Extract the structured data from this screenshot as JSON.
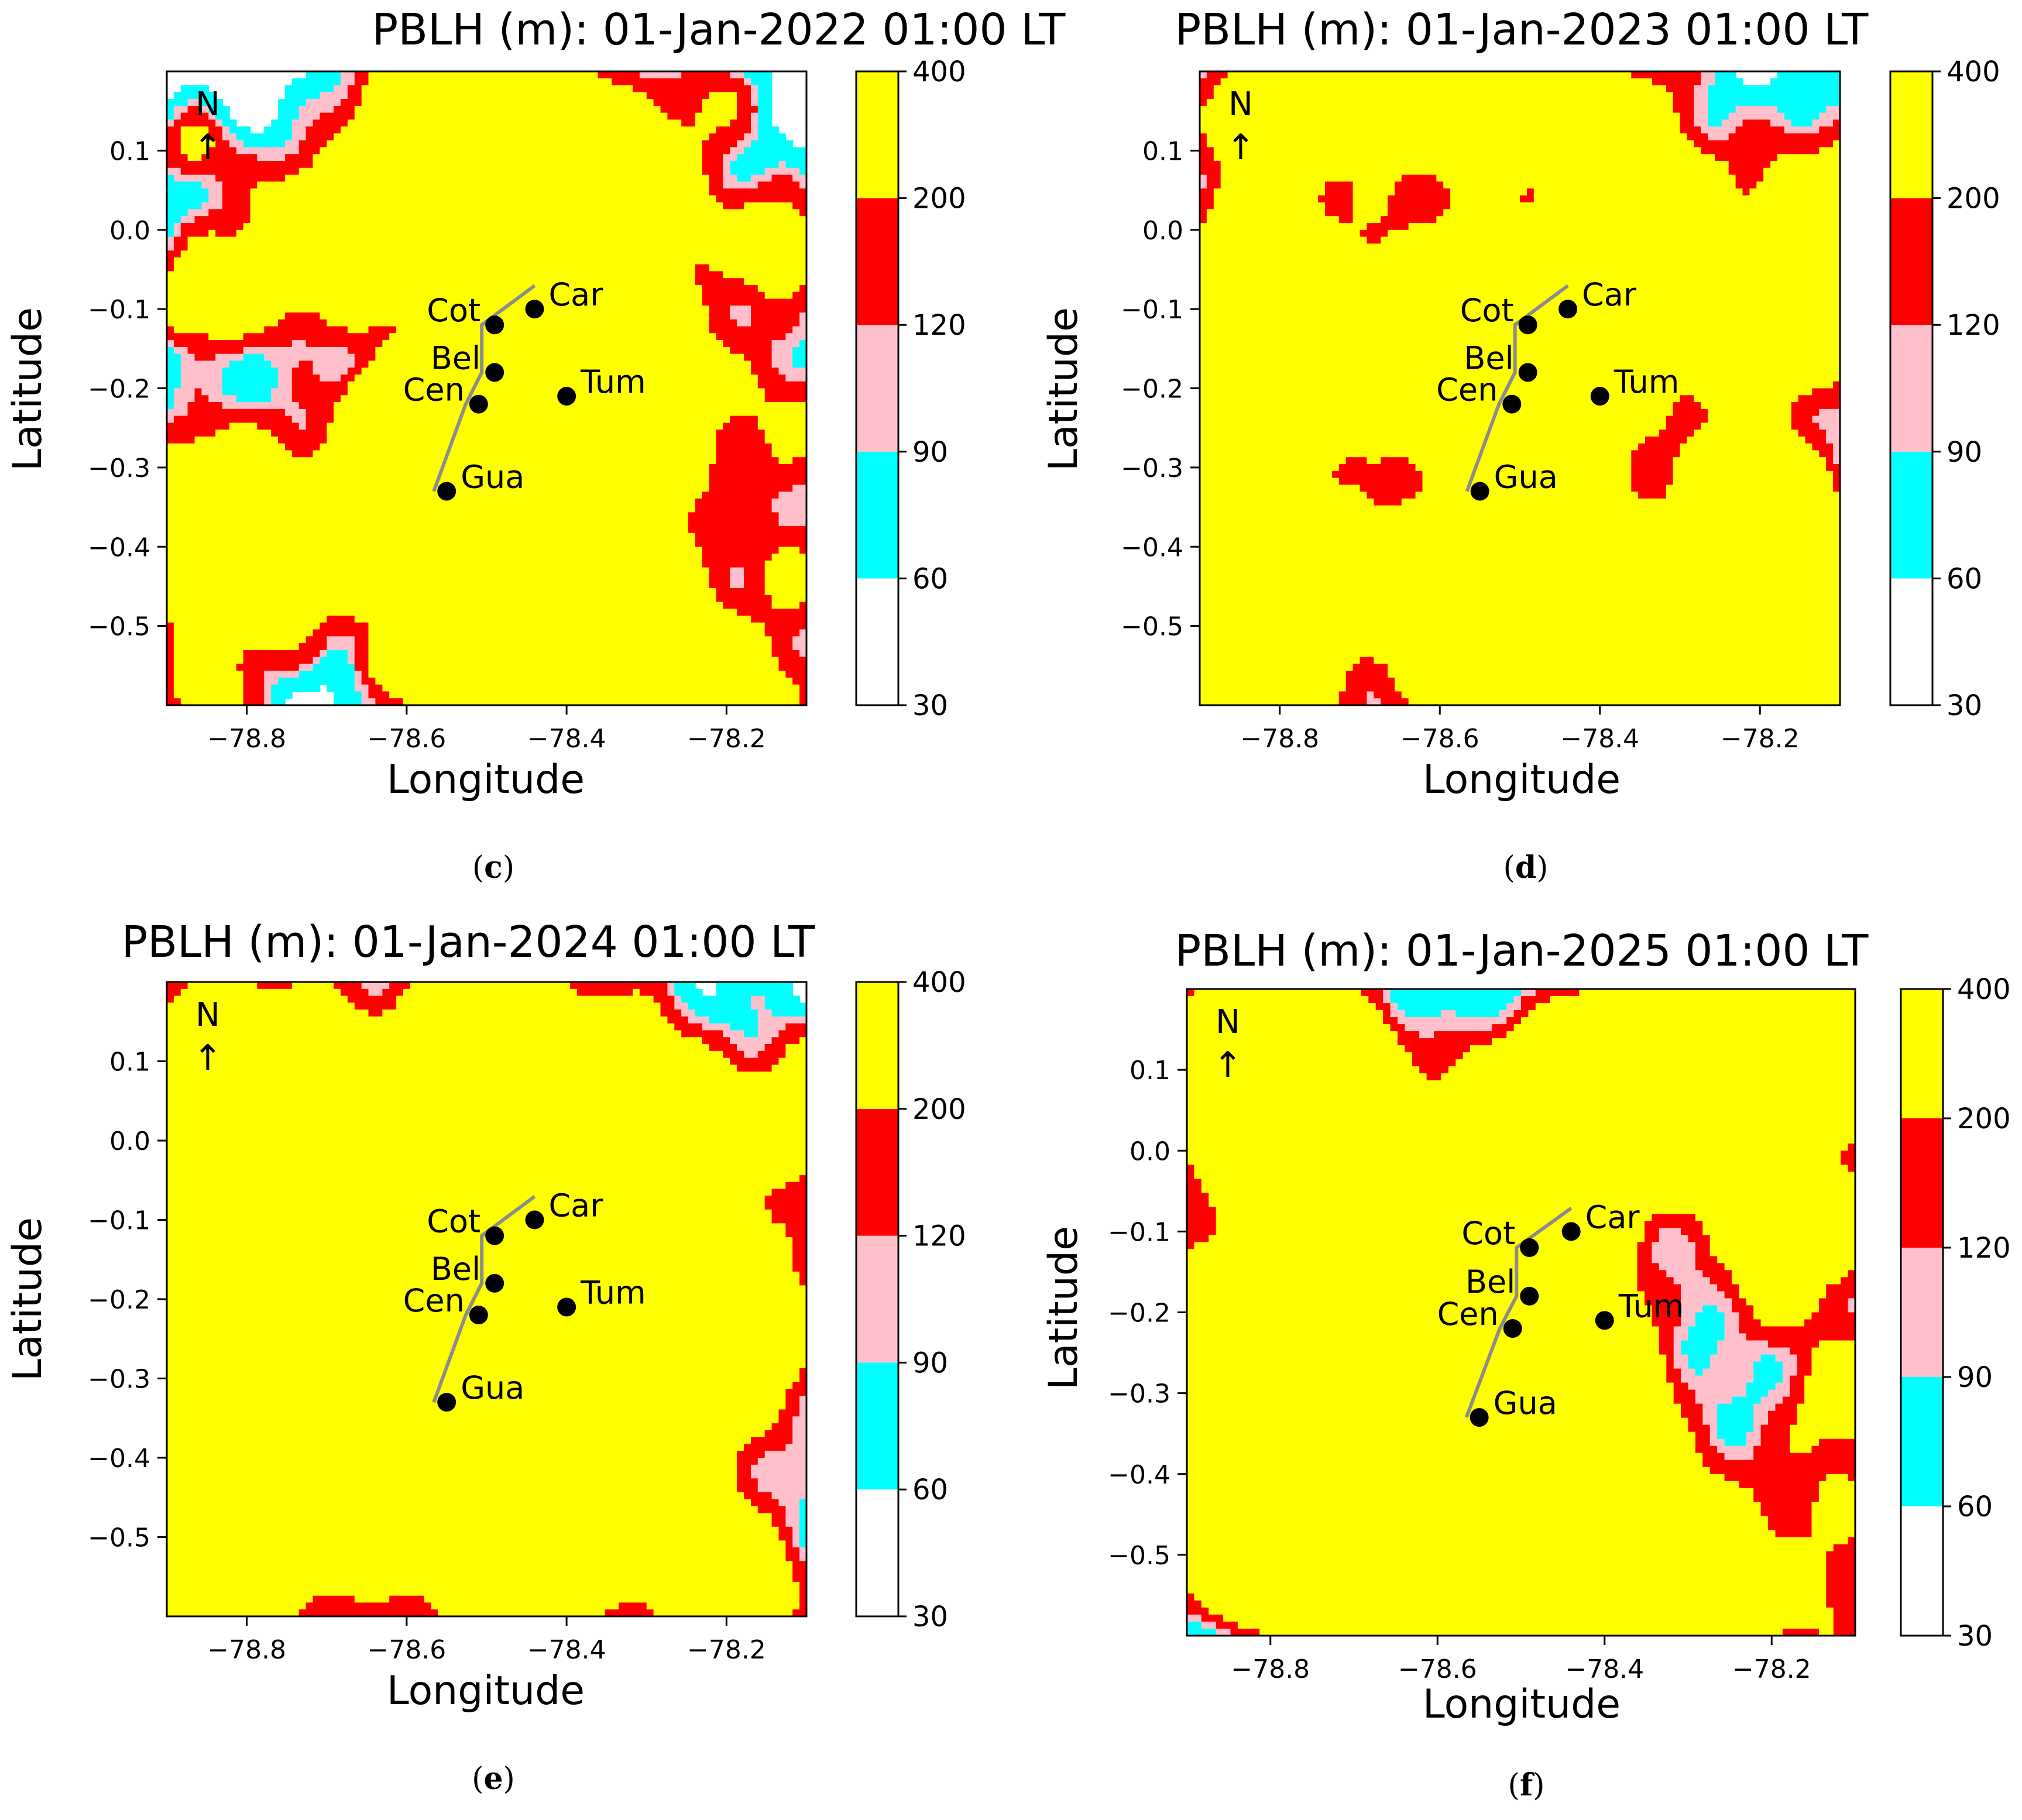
{
  "colors": {
    "white": "#ffffff",
    "cyan": "#00ffff",
    "pink": "#ffc0cb",
    "red": "#ff0000",
    "yellow": "#ffff00",
    "contour_line": "#8c8c8c"
  },
  "chart_data": [
    {
      "type": "contour-map",
      "panel_label": "c",
      "title": "PBLH (m): 01-Jan-2022 01:00 LT",
      "xlabel": "Longitude",
      "ylabel": "Latitude",
      "xlim": [
        -78.9,
        -78.1
      ],
      "ylim": [
        -0.6,
        0.2
      ],
      "xticks": [
        -78.8,
        -78.6,
        -78.4,
        -78.2
      ],
      "xtick_labels": [
        "−78.8",
        "−78.6",
        "−78.4",
        "−78.2"
      ],
      "yticks": [
        0.1,
        0.0,
        -0.1,
        -0.2,
        -0.3,
        -0.4,
        -0.5
      ],
      "ytick_labels": [
        "0.1",
        "0.0",
        "−0.1",
        "−0.2",
        "−0.3",
        "−0.4",
        "−0.5"
      ],
      "north_label": "N",
      "north_arrow": "↑",
      "colorbar_levels": [
        30,
        60,
        90,
        120,
        200,
        400
      ],
      "colorbar_labels": [
        "30",
        "60",
        "90",
        "120",
        "200",
        "400"
      ],
      "stations": [
        {
          "name": "Cot",
          "lon": -78.49,
          "lat": -0.12,
          "label_side": "left"
        },
        {
          "name": "Car",
          "lon": -78.44,
          "lat": -0.1,
          "label_side": "right"
        },
        {
          "name": "Bel",
          "lon": -78.49,
          "lat": -0.18,
          "label_side": "left"
        },
        {
          "name": "Cen",
          "lon": -78.51,
          "lat": -0.22,
          "label_side": "left"
        },
        {
          "name": "Tum",
          "lon": -78.4,
          "lat": -0.21,
          "label_side": "right"
        },
        {
          "name": "Gua",
          "lon": -78.55,
          "lat": -0.33,
          "label_side": "right"
        }
      ]
    },
    {
      "type": "contour-map",
      "panel_label": "d",
      "title": "PBLH (m): 01-Jan-2023 01:00 LT",
      "xlabel": "Longitude",
      "ylabel": "Latitude",
      "xlim": [
        -78.9,
        -78.1
      ],
      "ylim": [
        -0.6,
        0.2
      ],
      "xticks": [
        -78.8,
        -78.6,
        -78.4,
        -78.2
      ],
      "xtick_labels": [
        "−78.8",
        "−78.6",
        "−78.4",
        "−78.2"
      ],
      "yticks": [
        0.1,
        0.0,
        -0.1,
        -0.2,
        -0.3,
        -0.4,
        -0.5
      ],
      "ytick_labels": [
        "0.1",
        "0.0",
        "−0.1",
        "−0.2",
        "−0.3",
        "−0.4",
        "−0.5"
      ],
      "north_label": "N",
      "north_arrow": "↑",
      "colorbar_levels": [
        30,
        60,
        90,
        120,
        200,
        400
      ],
      "colorbar_labels": [
        "30",
        "60",
        "90",
        "120",
        "200",
        "400"
      ],
      "stations": [
        {
          "name": "Cot",
          "lon": -78.49,
          "lat": -0.12,
          "label_side": "left"
        },
        {
          "name": "Car",
          "lon": -78.44,
          "lat": -0.1,
          "label_side": "right"
        },
        {
          "name": "Bel",
          "lon": -78.49,
          "lat": -0.18,
          "label_side": "left"
        },
        {
          "name": "Cen",
          "lon": -78.51,
          "lat": -0.22,
          "label_side": "left"
        },
        {
          "name": "Tum",
          "lon": -78.4,
          "lat": -0.21,
          "label_side": "right"
        },
        {
          "name": "Gua",
          "lon": -78.55,
          "lat": -0.33,
          "label_side": "right"
        }
      ]
    },
    {
      "type": "contour-map",
      "panel_label": "e",
      "title": "PBLH (m): 01-Jan-2024 01:00 LT",
      "xlabel": "Longitude",
      "ylabel": "Latitude",
      "xlim": [
        -78.9,
        -78.1
      ],
      "ylim": [
        -0.6,
        0.2
      ],
      "xticks": [
        -78.8,
        -78.6,
        -78.4,
        -78.2
      ],
      "xtick_labels": [
        "−78.8",
        "−78.6",
        "−78.4",
        "−78.2"
      ],
      "yticks": [
        0.1,
        0.0,
        -0.1,
        -0.2,
        -0.3,
        -0.4,
        -0.5
      ],
      "ytick_labels": [
        "0.1",
        "0.0",
        "−0.1",
        "−0.2",
        "−0.3",
        "−0.4",
        "−0.5"
      ],
      "north_label": "N",
      "north_arrow": "↑",
      "colorbar_levels": [
        30,
        60,
        90,
        120,
        200,
        400
      ],
      "colorbar_labels": [
        "30",
        "60",
        "90",
        "120",
        "200",
        "400"
      ],
      "stations": [
        {
          "name": "Cot",
          "lon": -78.49,
          "lat": -0.12,
          "label_side": "left"
        },
        {
          "name": "Car",
          "lon": -78.44,
          "lat": -0.1,
          "label_side": "right"
        },
        {
          "name": "Bel",
          "lon": -78.49,
          "lat": -0.18,
          "label_side": "left"
        },
        {
          "name": "Cen",
          "lon": -78.51,
          "lat": -0.22,
          "label_side": "left"
        },
        {
          "name": "Tum",
          "lon": -78.4,
          "lat": -0.21,
          "label_side": "right"
        },
        {
          "name": "Gua",
          "lon": -78.55,
          "lat": -0.33,
          "label_side": "right"
        }
      ]
    },
    {
      "type": "contour-map",
      "panel_label": "f",
      "title": "PBLH (m): 01-Jan-2025 01:00 LT",
      "xlabel": "Longitude",
      "ylabel": "Latitude",
      "xlim": [
        -78.9,
        -78.1
      ],
      "ylim": [
        -0.6,
        0.2
      ],
      "xticks": [
        -78.8,
        -78.6,
        -78.4,
        -78.2
      ],
      "xtick_labels": [
        "−78.8",
        "−78.6",
        "−78.4",
        "−78.2"
      ],
      "yticks": [
        0.1,
        0.0,
        -0.1,
        -0.2,
        -0.3,
        -0.4,
        -0.5
      ],
      "ytick_labels": [
        "0.1",
        "0.0",
        "−0.1",
        "−0.2",
        "−0.3",
        "−0.4",
        "−0.5"
      ],
      "north_label": "N",
      "north_arrow": "↑",
      "colorbar_levels": [
        30,
        60,
        90,
        120,
        200,
        400
      ],
      "colorbar_labels": [
        "30",
        "60",
        "90",
        "120",
        "200",
        "400"
      ],
      "stations": [
        {
          "name": "Cot",
          "lon": -78.49,
          "lat": -0.12,
          "label_side": "left"
        },
        {
          "name": "Car",
          "lon": -78.44,
          "lat": -0.1,
          "label_side": "right"
        },
        {
          "name": "Bel",
          "lon": -78.49,
          "lat": -0.18,
          "label_side": "left"
        },
        {
          "name": "Cen",
          "lon": -78.51,
          "lat": -0.22,
          "label_side": "left"
        },
        {
          "name": "Tum",
          "lon": -78.4,
          "lat": -0.21,
          "label_side": "right"
        },
        {
          "name": "Gua",
          "lon": -78.55,
          "lat": -0.33,
          "label_side": "right"
        }
      ]
    }
  ]
}
